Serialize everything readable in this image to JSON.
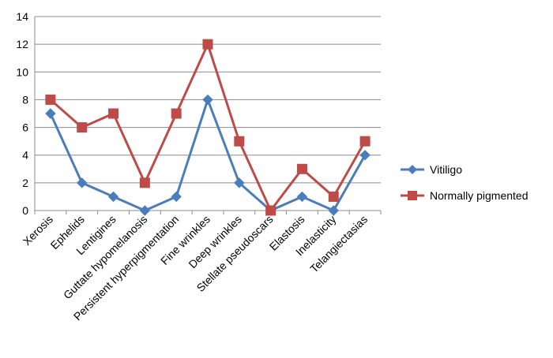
{
  "chart_data": {
    "type": "line",
    "title": "",
    "xlabel": "",
    "ylabel": "",
    "ylim": [
      0,
      14
    ],
    "y_ticks": [
      "0",
      "2",
      "4",
      "6",
      "8",
      "10",
      "12",
      "14"
    ],
    "grid": true,
    "legend_position": "right",
    "categories": [
      "Xerosis",
      "Ephelids",
      "Lentigines",
      "Guttate hypomelanosis",
      "Persistent hyperpigmentation",
      "Fine wrinkles",
      "Deep wrinkles",
      "Stellate pseudoscars",
      "Elastosis",
      "Inelasticity",
      "Telangiectasias"
    ],
    "series": [
      {
        "name": "Vitiligo",
        "color": "#4a7ebb",
        "marker": "diamond",
        "values": [
          7,
          2,
          1,
          0,
          1,
          8,
          2,
          0,
          1,
          0,
          4
        ]
      },
      {
        "name": "Normally pigmented",
        "color": "#be4b48",
        "marker": "square",
        "values": [
          8,
          6,
          7,
          2,
          7,
          12,
          5,
          0,
          3,
          1,
          5
        ]
      }
    ]
  }
}
